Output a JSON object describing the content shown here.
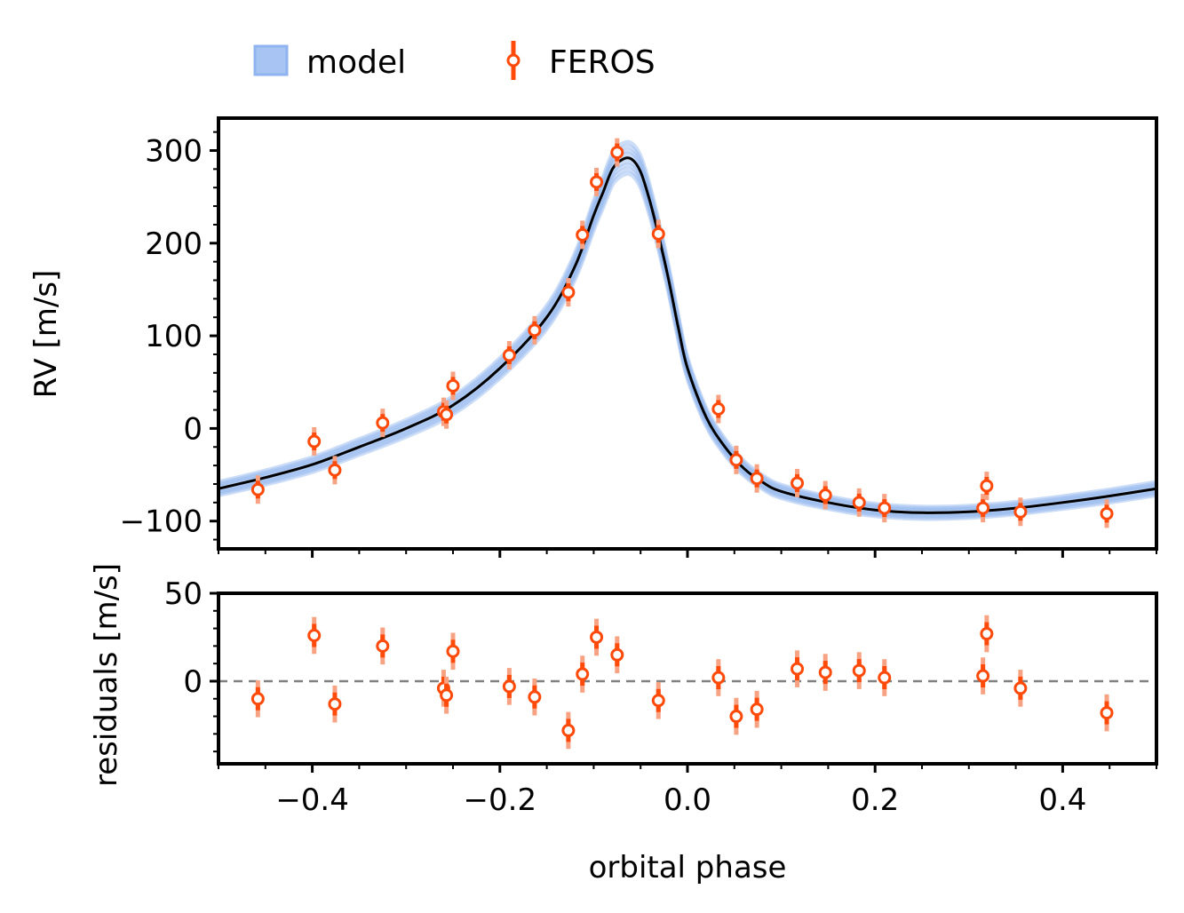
{
  "chart_data": [
    {
      "type": "line",
      "panel": "top",
      "xlabel": "",
      "ylabel": "RV [m/s]",
      "xlim": [
        -0.5,
        0.5
      ],
      "ylim": [
        -130,
        335
      ],
      "yticks": [
        -100,
        0,
        100,
        200,
        300
      ],
      "ytick_labels": [
        "−100",
        "0",
        "100",
        "200",
        "300"
      ],
      "legend": {
        "placement": "top-left",
        "entries": [
          {
            "label": "model",
            "color": "#8fb3ee"
          },
          {
            "label": "FEROS",
            "color": "#ff4a0a"
          }
        ]
      },
      "model": {
        "name": "model",
        "color": "#000000",
        "band_color": "#8fb3ee",
        "x": [
          -0.5,
          -0.45,
          -0.4,
          -0.35,
          -0.3,
          -0.25,
          -0.2,
          -0.15,
          -0.12,
          -0.1,
          -0.09,
          -0.08,
          -0.07,
          -0.06,
          -0.05,
          -0.04,
          -0.03,
          -0.02,
          -0.01,
          0.0,
          0.02,
          0.04,
          0.06,
          0.08,
          0.1,
          0.15,
          0.2,
          0.25,
          0.3,
          0.35,
          0.4,
          0.45,
          0.5
        ],
        "y": [
          -65,
          -53,
          -39,
          -20,
          0,
          25,
          65,
          120,
          175,
          230,
          255,
          280,
          290,
          291,
          277,
          245,
          205,
          160,
          110,
          65,
          12,
          -20,
          -43,
          -58,
          -68,
          -80,
          -88,
          -91,
          -90,
          -86,
          -80,
          -73,
          -65
        ]
      },
      "series": [
        {
          "name": "FEROS",
          "color": "#ff4a0a",
          "x": [
            -0.458,
            -0.398,
            -0.376,
            -0.325,
            -0.26,
            -0.257,
            -0.25,
            -0.19,
            -0.163,
            -0.127,
            -0.112,
            -0.097,
            -0.075,
            -0.031,
            0.033,
            0.052,
            0.074,
            0.117,
            0.147,
            0.183,
            0.21,
            0.315,
            0.319,
            0.355,
            0.447
          ],
          "y": [
            -66,
            -14,
            -45,
            6,
            18,
            15,
            46,
            79,
            106,
            147,
            209,
            266,
            298,
            210,
            21,
            -34,
            -54,
            -59,
            -72,
            -80,
            -86,
            -86,
            -62,
            -90,
            -92
          ]
        }
      ]
    },
    {
      "type": "scatter",
      "panel": "bottom",
      "xlabel": "orbital phase",
      "ylabel": "residuals [m/s]",
      "xlim": [
        -0.5,
        0.5
      ],
      "ylim": [
        -47,
        50
      ],
      "yticks": [
        0,
        50
      ],
      "ytick_labels": [
        "0",
        "50"
      ],
      "xticks": [
        -0.4,
        -0.2,
        0.0,
        0.2,
        0.4
      ],
      "xtick_labels": [
        "−0.4",
        "−0.2",
        "0.0",
        "0.2",
        "0.4"
      ],
      "zero_line": {
        "value": 0,
        "color": "#808080",
        "style": "dashed"
      },
      "series": [
        {
          "name": "FEROS",
          "color": "#ff4a0a",
          "x": [
            -0.458,
            -0.398,
            -0.376,
            -0.325,
            -0.26,
            -0.257,
            -0.25,
            -0.19,
            -0.163,
            -0.127,
            -0.112,
            -0.097,
            -0.075,
            -0.031,
            0.033,
            0.052,
            0.074,
            0.117,
            0.147,
            0.183,
            0.21,
            0.315,
            0.319,
            0.355,
            0.447
          ],
          "y": [
            -10,
            26,
            -13,
            20,
            -4,
            -8,
            17,
            -3,
            -9,
            -28,
            4,
            25,
            15,
            -11,
            2,
            -20,
            -16,
            7,
            5,
            6,
            2,
            3,
            27,
            -4,
            -18
          ]
        }
      ]
    }
  ]
}
